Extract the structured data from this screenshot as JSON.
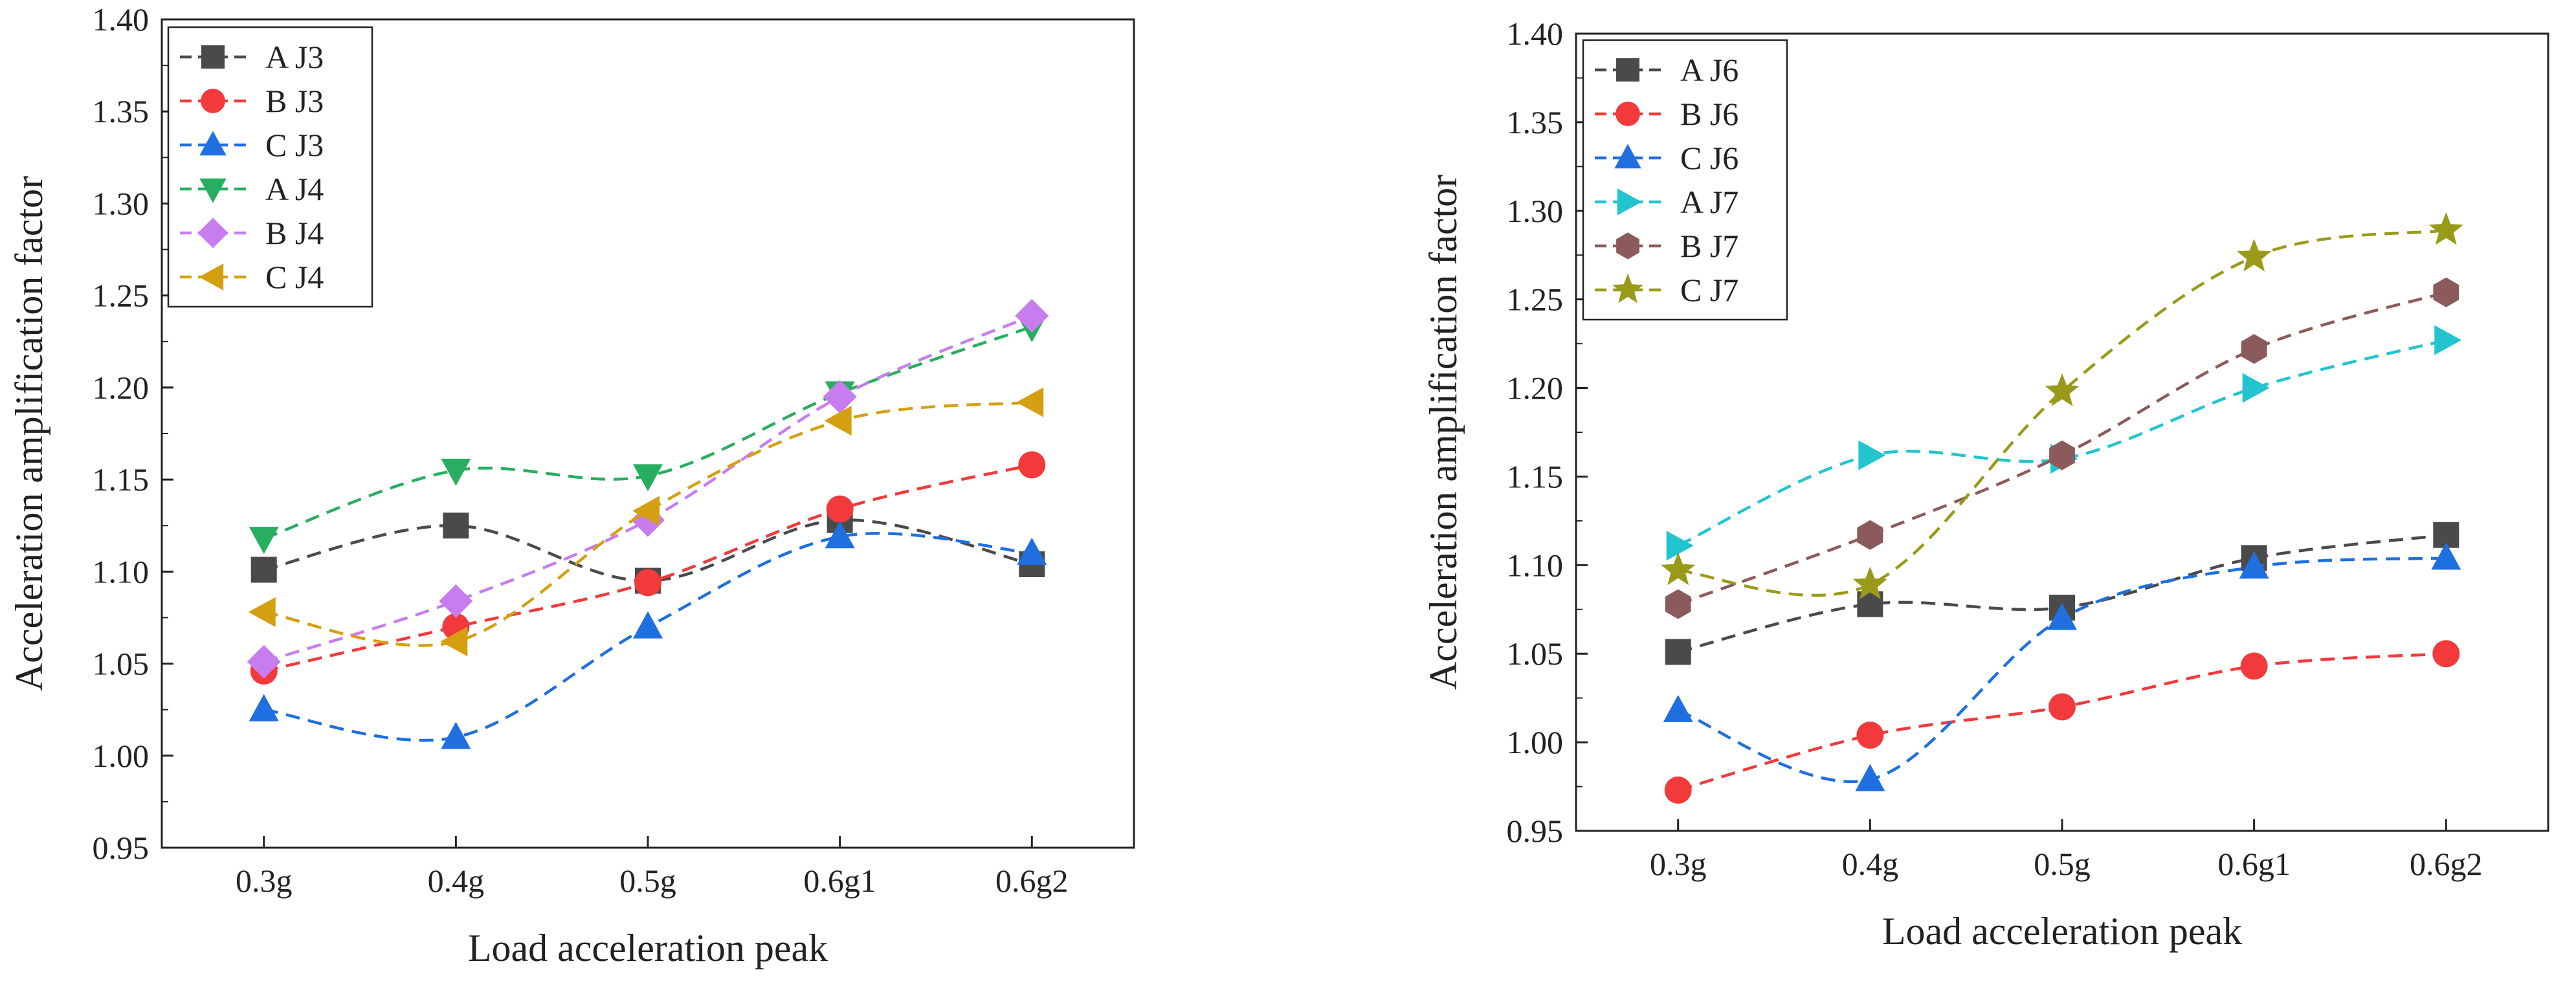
{
  "chart_data": [
    {
      "type": "line",
      "title": "",
      "xlabel": "Load acceleration peak",
      "ylabel": "Acceleration amplification factor",
      "categories": [
        "0.3g",
        "0.4g",
        "0.5g",
        "0.6g1",
        "0.6g2"
      ],
      "ylim": [
        0.95,
        1.4
      ],
      "yticks": [
        "0.95",
        "1.00",
        "1.05",
        "1.10",
        "1.15",
        "1.20",
        "1.25",
        "1.30",
        "1.35",
        "1.40"
      ],
      "legend_position": "top-left",
      "series": [
        {
          "name": "A J3",
          "color": "#4a4a4a",
          "marker": "square",
          "values": [
            1.101,
            1.125,
            1.095,
            1.128,
            1.104
          ]
        },
        {
          "name": "B J3",
          "color": "#f2393b",
          "marker": "circle",
          "values": [
            1.046,
            1.07,
            1.094,
            1.134,
            1.158
          ]
        },
        {
          "name": "C J3",
          "color": "#1f6fe0",
          "marker": "triangle-up",
          "values": [
            1.025,
            1.01,
            1.07,
            1.119,
            1.11
          ]
        },
        {
          "name": "A J4",
          "color": "#27ae60",
          "marker": "triangle-down",
          "values": [
            1.118,
            1.155,
            1.152,
            1.197,
            1.233
          ]
        },
        {
          "name": "B J4",
          "color": "#c77dee",
          "marker": "diamond",
          "values": [
            1.051,
            1.084,
            1.128,
            1.195,
            1.239
          ]
        },
        {
          "name": "C J4",
          "color": "#d4a012",
          "marker": "triangle-left",
          "values": [
            1.078,
            1.062,
            1.133,
            1.182,
            1.192
          ]
        }
      ]
    },
    {
      "type": "line",
      "title": "",
      "xlabel": "Load acceleration peak",
      "ylabel": "Acceleration amplification factor",
      "categories": [
        "0.3g",
        "0.4g",
        "0.5g",
        "0.6g1",
        "0.6g2"
      ],
      "ylim": [
        0.95,
        1.4
      ],
      "yticks": [
        "0.95",
        "1.00",
        "1.05",
        "1.10",
        "1.15",
        "1.20",
        "1.25",
        "1.30",
        "1.35",
        "1.40"
      ],
      "legend_position": "top-left",
      "series": [
        {
          "name": "A J6",
          "color": "#4a4a4a",
          "marker": "square",
          "values": [
            1.051,
            1.078,
            1.076,
            1.104,
            1.117
          ]
        },
        {
          "name": "B J6",
          "color": "#f2393b",
          "marker": "circle",
          "values": [
            0.973,
            1.004,
            1.02,
            1.043,
            1.05
          ]
        },
        {
          "name": "C J6",
          "color": "#1f6fe0",
          "marker": "triangle-up",
          "values": [
            1.018,
            0.979,
            1.07,
            1.099,
            1.104
          ]
        },
        {
          "name": "A J7",
          "color": "#22c4cf",
          "marker": "triangle-right",
          "values": [
            1.111,
            1.162,
            1.16,
            1.2,
            1.227
          ]
        },
        {
          "name": "B J7",
          "color": "#8b5a5a",
          "marker": "hexagon",
          "values": [
            1.078,
            1.117,
            1.162,
            1.222,
            1.254
          ]
        },
        {
          "name": "C J7",
          "color": "#9a9a1a",
          "marker": "star",
          "values": [
            1.097,
            1.089,
            1.198,
            1.274,
            1.289
          ]
        }
      ]
    }
  ]
}
